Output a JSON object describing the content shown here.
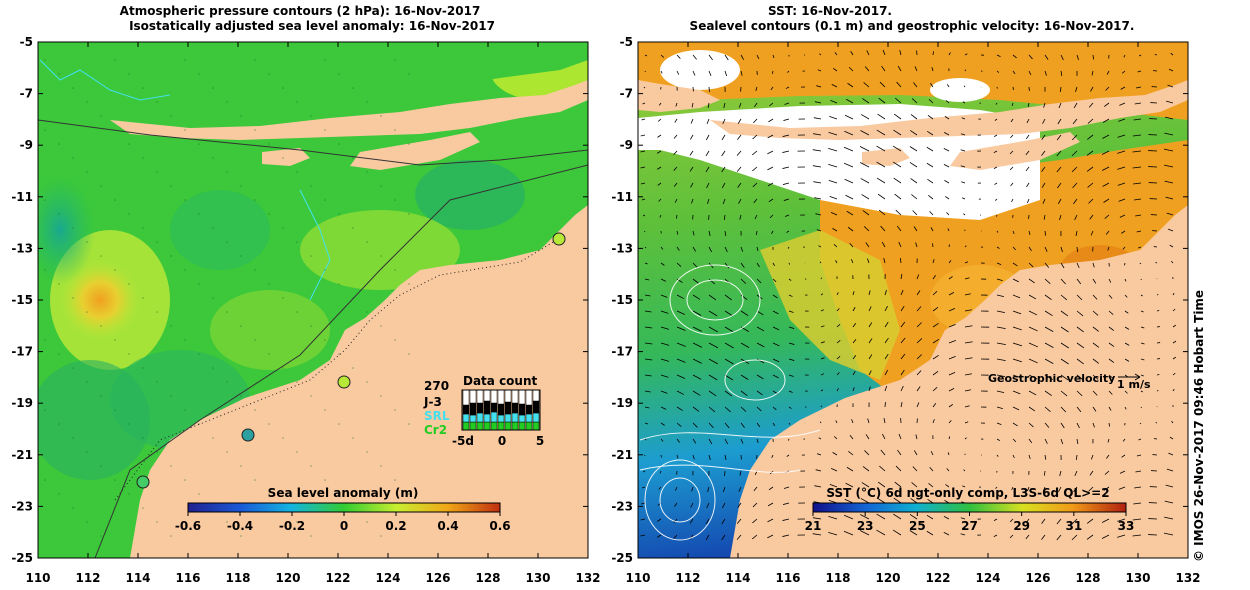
{
  "left_panel": {
    "title_line1": "Atmospheric pressure contours (2 hPa): 16-Nov-2017",
    "title_line2": "Isostatically adjusted sea level anomaly: 16-Nov-2017",
    "y_ticks": [
      "-5",
      "-7",
      "-9",
      "-11",
      "-13",
      "-15",
      "-17",
      "-19",
      "-21",
      "-23",
      "-25"
    ],
    "x_ticks": [
      "110",
      "112",
      "114",
      "116",
      "118",
      "120",
      "122",
      "124",
      "126",
      "128",
      "130",
      "132"
    ],
    "colorbar": {
      "label": "Sea level anomaly (m)",
      "ticks": [
        "-0.6",
        "-0.4",
        "-0.2",
        "0",
        "0.2",
        "0.4",
        "0.6"
      ]
    },
    "data_count": {
      "title": "Data count",
      "max_label": "270",
      "legend": [
        {
          "label": "J-3",
          "color": "#000000"
        },
        {
          "label": "SRL",
          "color": "#44e0ee"
        },
        {
          "label": "Cr2",
          "color": "#22cc22"
        }
      ],
      "x_ticks": [
        "-5d",
        "0",
        "5"
      ]
    }
  },
  "right_panel": {
    "title_line1": "SST: 16-Nov-2017.",
    "title_line2": "Sealevel contours (0.1 m) and geostrophic velocity: 16-Nov-2017.",
    "y_ticks": [
      "-5",
      "-7",
      "-9",
      "-11",
      "-13",
      "-15",
      "-17",
      "-19",
      "-21",
      "-23",
      "-25"
    ],
    "x_ticks": [
      "110",
      "112",
      "114",
      "116",
      "118",
      "120",
      "122",
      "124",
      "126",
      "128",
      "130",
      "132"
    ],
    "velocity_label": "Geostrophic velocity",
    "velocity_unit": "1 m/s",
    "colorbar": {
      "label": "SST (°C) 6d ngt-only comp, L3S-6d QL>=2",
      "ticks": [
        "21",
        "23",
        "25",
        "27",
        "29",
        "31",
        "33"
      ]
    }
  },
  "side_credit": "© IMOS 26-Nov-2017 09:46 Hobart Time",
  "colors": {
    "land": "#f9c9a0",
    "sla_positive": "#b8e838",
    "sla_zero": "#44cc22",
    "sla_negative": "#22bb66",
    "sst_warm": "#f0a020",
    "sst_mid": "#66cc33",
    "sst_cool": "#1e88d8"
  }
}
